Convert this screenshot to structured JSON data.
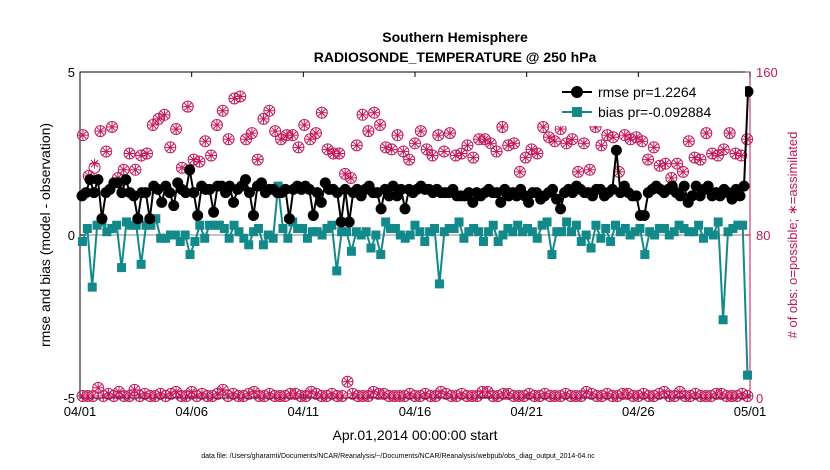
{
  "chart_data": {
    "type": "line",
    "title": "Southern Hemisphere",
    "subtitle": "RADIOSONDE_TEMPERATURE @ 250 hPa",
    "xlabel": "Apr.01,2014 00:00:00 start",
    "ylabel": "rmse and bias (model - observation)",
    "ylabel_right": "# of obs: o=possible; ∗=assimilated",
    "footnote": "data file: /Users/gharamti/Documents/NCAR/Reanalysis/~/Documents/NCAR/Reanalysis/webpub/obs_diag_output_2014-04.nc",
    "xlim": [
      0,
      30
    ],
    "ylim": [
      -5,
      5
    ],
    "ylim_right": [
      0,
      160
    ],
    "x_ticks": [
      0,
      5,
      10,
      15,
      20,
      25,
      30
    ],
    "x_tick_labels": [
      "04/01",
      "04/06",
      "04/11",
      "04/16",
      "04/21",
      "04/26",
      "05/01"
    ],
    "y_ticks": [
      -5,
      0,
      5
    ],
    "y_tick_labels": [
      "-5",
      "0",
      "5"
    ],
    "y_ticks_right": [
      0,
      80,
      160
    ],
    "y_tick_labels_right": [
      "0",
      "80",
      "160"
    ],
    "colors": {
      "rmse": "#000000",
      "bias": "#13898a",
      "obs": "#c2185b",
      "zero_line": "#b0b0b0"
    },
    "legend": [
      {
        "label": "rmse pr=1.2264",
        "series": "rmse"
      },
      {
        "label": "bias pr=-0.092884",
        "series": "bias"
      }
    ],
    "series": [
      {
        "name": "rmse",
        "axis": "left",
        "marker": "circle",
        "values": [
          1.2,
          1.3,
          1.7,
          1.3,
          1.7,
          0.5,
          1.3,
          1.4,
          1.6,
          1.6,
          1.3,
          1.7,
          1.3,
          1.2,
          0.5,
          1.3,
          1.3,
          0.5,
          1.5,
          1.4,
          1.0,
          1.5,
          1.3,
          0.9,
          1.6,
          1.4,
          1.3,
          2.0,
          1.3,
          0.6,
          1.5,
          1.4,
          1.4,
          0.7,
          1.5,
          1.5,
          1.3,
          1.5,
          1.0,
          1.4,
          1.5,
          1.7,
          1.3,
          0.6,
          1.5,
          1.6,
          1.3,
          1.4,
          1.4,
          1.3,
          1.3,
          1.4,
          0.5,
          1.4,
          1.5,
          1.4,
          1.5,
          1.4,
          0.6,
          1.3,
          1.0,
          1.6,
          1.4,
          1.4,
          1.3,
          0.4,
          1.4,
          0.4,
          1.3,
          1.4,
          1.2,
          1.4,
          1.5,
          1.3,
          1.3,
          0.8,
          1.4,
          1.2,
          1.5,
          1.2,
          1.4,
          0.8,
          1.4,
          1.3,
          1.4,
          1.5,
          1.4,
          1.4,
          1.3,
          1.4,
          1.3,
          1.3,
          1.3,
          1.4,
          1.2,
          1.2,
          1.2,
          1.3,
          1.0,
          1.3,
          1.2,
          1.3,
          1.4,
          1.3,
          1.3,
          1.0,
          1.4,
          1.2,
          1.3,
          1.2,
          1.4,
          1.2,
          1.0,
          1.3,
          1.3,
          1.1,
          1.2,
          1.3,
          1.4,
          1.1,
          0.8,
          1.3,
          1.4,
          1.3,
          1.5,
          1.4,
          1.3,
          1.3,
          1.2,
          1.4,
          1.4,
          1.2,
          1.3,
          1.4,
          2.6,
          1.3,
          1.5,
          1.3,
          1.2,
          1.2,
          0.6,
          0.6,
          1.3,
          1.4,
          1.5,
          1.4,
          1.3,
          1.4,
          1.5,
          1.3,
          1.2,
          1.5,
          1.0,
          1.2,
          1.5,
          1.2,
          1.4,
          1.5,
          1.2,
          1.3,
          1.2,
          1.4,
          1.3,
          1.1,
          1.4,
          1.2,
          1.5,
          4.4
        ]
      },
      {
        "name": "bias",
        "axis": "left",
        "marker": "square",
        "values": [
          -0.2,
          0.2,
          -1.6,
          0.3,
          0.4,
          0.1,
          0.2,
          0.3,
          -1.0,
          0.4,
          0.3,
          0.3,
          -0.9,
          0.3,
          0.3,
          0.5,
          -0.1,
          -0.1,
          0.0,
          0.0,
          -0.2,
          0.0,
          -0.6,
          -0.2,
          0.3,
          -0.1,
          0.3,
          0.3,
          0.3,
          0.2,
          -0.1,
          0.3,
          0.1,
          -0.1,
          -0.3,
          0.1,
          0.2,
          -0.3,
          0.0,
          -0.1,
          1.5,
          0.2,
          -0.1,
          0.4,
          0.2,
          0.2,
          -0.1,
          0.1,
          0.1,
          0.0,
          0.2,
          0.3,
          -1.1,
          0.1,
          0.1,
          -0.5,
          0.1,
          0.0,
          0.1,
          -0.4,
          0.0,
          -0.6,
          0.4,
          0.2,
          0.2,
          0.0,
          -0.1,
          0.0,
          0.3,
          0.1,
          -0.2,
          0.1,
          0.2,
          -1.5,
          0.1,
          0.2,
          0.2,
          0.4,
          -0.1,
          0.1,
          0.2,
          0.1,
          -0.2,
          0.1,
          0.3,
          -0.2,
          0.0,
          0.2,
          0.1,
          0.3,
          0.1,
          0.2,
          0.1,
          -0.1,
          0.3,
          0.4,
          -0.6,
          0.1,
          0.1,
          0.4,
          0.1,
          0.3,
          -0.2,
          0.0,
          -0.4,
          0.3,
          -0.1,
          0.2,
          -0.2,
          0.3,
          0.1,
          0.2,
          0.0,
          0.1,
          0.2,
          -0.6,
          0.1,
          0.0,
          0.2,
          0.2,
          0.0,
          0.1,
          0.3,
          0.2,
          0.1,
          0.1,
          0.3,
          -0.1,
          0.1,
          0.0,
          0.4,
          -2.6,
          0.1,
          0.2,
          0.3,
          0.3,
          -4.3
        ]
      },
      {
        "name": "obs_possible",
        "axis": "right",
        "marker": "open-circle",
        "values": [
          129,
          109,
          113,
          131,
          121,
          133,
          108,
          112,
          120,
          112,
          119,
          120,
          134,
          137,
          139,
          123,
          132,
          113,
          143,
          117,
          116,
          126,
          119,
          134,
          141,
          127,
          147,
          148,
          127,
          130,
          117,
          137,
          141,
          131,
          127,
          129,
          129,
          123,
          134,
          127,
          130,
          140,
          122,
          120,
          120,
          110,
          108,
          124,
          139,
          131,
          140,
          134,
          123,
          122,
          129,
          121,
          117,
          125,
          131,
          122,
          119,
          129,
          121,
          130,
          119,
          120,
          124,
          118,
          127,
          127,
          125,
          121,
          133,
          124,
          125,
          111,
          118,
          122,
          120,
          133,
          128,
          126,
          132,
          125,
          127,
          111,
          125,
          112,
          133,
          124,
          129,
          128,
          111,
          129,
          127,
          128,
          126,
          117,
          123,
          114,
          115,
          108,
          115,
          111,
          126,
          118,
          117,
          130,
          120,
          119,
          122,
          130,
          120,
          119,
          127
        ]
      },
      {
        "name": "obs_assimilated",
        "axis": "right",
        "marker": "asterisk",
        "values": [
          129,
          109,
          115,
          131,
          121,
          133,
          108,
          112,
          120,
          112,
          119,
          120,
          134,
          137,
          139,
          123,
          132,
          113,
          143,
          117,
          116,
          126,
          119,
          134,
          141,
          127,
          147,
          148,
          127,
          130,
          117,
          137,
          141,
          131,
          127,
          129,
          129,
          123,
          134,
          127,
          130,
          140,
          122,
          120,
          120,
          110,
          108,
          124,
          139,
          131,
          140,
          134,
          123,
          122,
          129,
          121,
          117,
          125,
          131,
          122,
          119,
          129,
          121,
          130,
          119,
          120,
          124,
          118,
          127,
          127,
          125,
          121,
          133,
          124,
          125,
          111,
          118,
          122,
          120,
          133,
          128,
          126,
          132,
          125,
          127,
          111,
          125,
          112,
          133,
          124,
          129,
          128,
          111,
          129,
          127,
          128,
          126,
          117,
          123,
          114,
          115,
          108,
          115,
          111,
          126,
          118,
          117,
          130,
          120,
          119,
          122,
          130,
          120,
          119,
          127
        ]
      },
      {
        "name": "obs_possible_00z",
        "axis": "right",
        "marker": "open-circle",
        "values": [
          1,
          1,
          1,
          5,
          1,
          2,
          1,
          3,
          1,
          1,
          4,
          1,
          2,
          1,
          1,
          2,
          1,
          2,
          3,
          1,
          1,
          3,
          1,
          2,
          1,
          1,
          2,
          4,
          1,
          2,
          1,
          1,
          2,
          3,
          1,
          1,
          2,
          1,
          1,
          1,
          2,
          2,
          1,
          1,
          3,
          2,
          1,
          1,
          2,
          1,
          1,
          8,
          2,
          1,
          1,
          1,
          3,
          2,
          2,
          1,
          1,
          1,
          1,
          2,
          1,
          1,
          2,
          1,
          1,
          3,
          2,
          1,
          1,
          2,
          1,
          1,
          1,
          3,
          3,
          1,
          1,
          2,
          2,
          1,
          1,
          1,
          2,
          1,
          1,
          2,
          1,
          1,
          1,
          2,
          1,
          1,
          1,
          3,
          2,
          1,
          1,
          2,
          1,
          1,
          2,
          2,
          1,
          1,
          2,
          1,
          1,
          2,
          3,
          1,
          1,
          3,
          1,
          1,
          2,
          1,
          1,
          1,
          2,
          2,
          1,
          1,
          1,
          2,
          1
        ]
      },
      {
        "name": "obs_assimilated_00z",
        "axis": "right",
        "marker": "asterisk",
        "values": [
          1,
          1,
          1,
          5,
          1,
          2,
          1,
          3,
          1,
          1,
          4,
          1,
          2,
          1,
          1,
          2,
          1,
          2,
          3,
          1,
          1,
          3,
          1,
          2,
          1,
          1,
          2,
          4,
          1,
          2,
          1,
          1,
          2,
          3,
          1,
          1,
          2,
          1,
          1,
          1,
          2,
          2,
          1,
          1,
          3,
          2,
          1,
          1,
          2,
          1,
          1,
          8,
          2,
          1,
          1,
          1,
          3,
          2,
          2,
          1,
          1,
          1,
          1,
          2,
          1,
          1,
          2,
          1,
          1,
          3,
          2,
          1,
          1,
          2,
          1,
          1,
          1,
          3,
          3,
          1,
          1,
          2,
          2,
          1,
          1,
          1,
          2,
          1,
          1,
          2,
          1,
          1,
          1,
          2,
          1,
          1,
          1,
          3,
          2,
          1,
          1,
          2,
          1,
          1,
          2,
          2,
          1,
          1,
          2,
          1,
          1,
          2,
          3,
          1,
          1,
          3,
          1,
          1,
          2,
          1,
          1,
          1,
          2,
          2,
          1,
          1,
          1,
          2,
          1
        ]
      }
    ]
  }
}
